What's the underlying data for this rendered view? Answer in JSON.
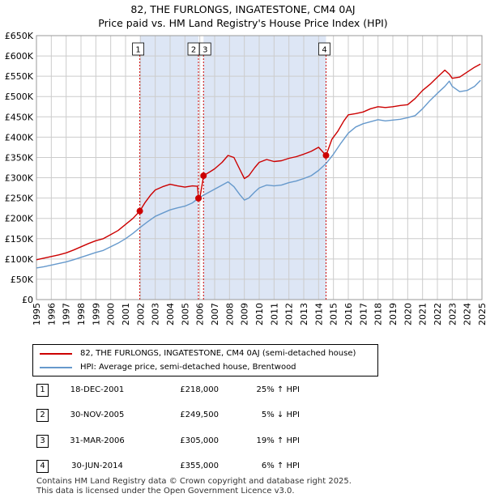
{
  "title_line1": "82, THE FURLONGS, INGATESTONE, CM4 0AJ",
  "title_line2": "Price paid vs. HM Land Registry's House Price Index (HPI)",
  "legend": {
    "property": "82, THE FURLONGS, INGATESTONE, CM4 0AJ (semi-detached house)",
    "hpi": "HPI: Average price, semi-detached house, Brentwood"
  },
  "colors": {
    "property": "#cc0000",
    "hpi": "#6699cc",
    "shade": "#dde6f5",
    "grid": "#cccccc",
    "marker": "#cc0000"
  },
  "sales": [
    {
      "num": "1",
      "date": "18-DEC-2001",
      "price": "£218,000",
      "pct": "25% ↑ HPI"
    },
    {
      "num": "2",
      "date": "30-NOV-2005",
      "price": "£249,500",
      "pct": "5% ↓ HPI"
    },
    {
      "num": "3",
      "date": "31-MAR-2006",
      "price": "£305,000",
      "pct": "19% ↑ HPI"
    },
    {
      "num": "4",
      "date": "30-JUN-2014",
      "price": "£355,000",
      "pct": "6% ↑ HPI"
    }
  ],
  "footer_line1": "Contains HM Land Registry data © Crown copyright and database right 2025.",
  "footer_line2": "This data is licensed under the Open Government Licence v3.0.",
  "chart_data": {
    "type": "line",
    "title": "82, THE FURLONGS, INGATESTONE, CM4 0AJ — Price paid vs. HM Land Registry's House Price Index (HPI)",
    "xlabel": "",
    "ylabel": "",
    "xlim": [
      1995,
      2025
    ],
    "ylim": [
      0,
      650000
    ],
    "x_ticks": [
      1995,
      1996,
      1997,
      1998,
      1999,
      2000,
      2001,
      2002,
      2003,
      2004,
      2005,
      2006,
      2007,
      2008,
      2009,
      2010,
      2011,
      2012,
      2013,
      2014,
      2015,
      2016,
      2017,
      2018,
      2019,
      2020,
      2021,
      2022,
      2023,
      2024,
      2025
    ],
    "y_ticks": [
      0,
      50000,
      100000,
      150000,
      200000,
      250000,
      300000,
      350000,
      400000,
      450000,
      500000,
      550000,
      600000,
      650000
    ],
    "y_tick_labels": [
      "£0",
      "£50K",
      "£100K",
      "£150K",
      "£200K",
      "£250K",
      "£300K",
      "£350K",
      "£400K",
      "£450K",
      "£500K",
      "£550K",
      "£600K",
      "£650K"
    ],
    "shaded_ranges": [
      [
        2001.96,
        2005.91
      ],
      [
        2006.25,
        2014.5
      ]
    ],
    "sale_points": [
      {
        "label": "1",
        "x": 2001.96,
        "y": 218000
      },
      {
        "label": "2",
        "x": 2005.91,
        "y": 249500
      },
      {
        "label": "3",
        "x": 2006.25,
        "y": 305000
      },
      {
        "label": "4",
        "x": 2014.5,
        "y": 355000
      }
    ],
    "series": [
      {
        "name": "82, THE FURLONGS, INGATESTONE, CM4 0AJ (semi-detached house)",
        "x": [
          1995,
          1995.5,
          1996,
          1996.5,
          1997,
          1997.5,
          1998,
          1998.5,
          1999,
          1999.5,
          2000,
          2000.5,
          2001,
          2001.5,
          2001.96,
          2002.3,
          2002.7,
          2003,
          2003.5,
          2004,
          2004.5,
          2005,
          2005.5,
          2005.85,
          2005.91,
          2006.0,
          2006.25,
          2006.7,
          2007,
          2007.5,
          2007.9,
          2008.3,
          2008.7,
          2009.0,
          2009.3,
          2009.7,
          2010,
          2010.5,
          2011,
          2011.5,
          2012,
          2012.5,
          2013,
          2013.5,
          2014,
          2014.5,
          2014.9,
          2015.3,
          2015.7,
          2016,
          2016.5,
          2017,
          2017.5,
          2018,
          2018.5,
          2019,
          2019.5,
          2020,
          2020.5,
          2021,
          2021.5,
          2022,
          2022.5,
          2022.8,
          2023,
          2023.5,
          2024,
          2024.5,
          2024.9
        ],
        "values": [
          98000,
          102000,
          106000,
          110000,
          115000,
          122000,
          130000,
          138000,
          145000,
          150000,
          160000,
          170000,
          185000,
          200000,
          218000,
          238000,
          258000,
          270000,
          278000,
          284000,
          280000,
          277000,
          280000,
          279000,
          249500,
          249500,
          305000,
          315000,
          322000,
          338000,
          355000,
          350000,
          320000,
          298000,
          305000,
          325000,
          338000,
          345000,
          340000,
          342000,
          348000,
          352000,
          358000,
          365000,
          375000,
          355000,
          395000,
          415000,
          440000,
          455000,
          458000,
          462000,
          470000,
          475000,
          473000,
          475000,
          478000,
          480000,
          495000,
          515000,
          530000,
          548000,
          565000,
          555000,
          545000,
          548000,
          560000,
          572000,
          580000
        ]
      },
      {
        "name": "HPI: Average price, semi-detached house, Brentwood",
        "x": [
          1995,
          1995.5,
          1996,
          1996.5,
          1997,
          1997.5,
          1998,
          1998.5,
          1999,
          1999.5,
          2000,
          2000.5,
          2001,
          2001.5,
          2002,
          2002.5,
          2003,
          2003.5,
          2004,
          2004.5,
          2005,
          2005.5,
          2006,
          2006.5,
          2007,
          2007.5,
          2007.9,
          2008.3,
          2008.7,
          2009.0,
          2009.3,
          2009.7,
          2010,
          2010.5,
          2011,
          2011.5,
          2012,
          2012.5,
          2013,
          2013.5,
          2014,
          2014.5,
          2015,
          2015.5,
          2016,
          2016.5,
          2017,
          2017.5,
          2018,
          2018.5,
          2019,
          2019.5,
          2020,
          2020.5,
          2021,
          2021.5,
          2022,
          2022.5,
          2022.8,
          2023,
          2023.5,
          2024,
          2024.5,
          2024.9
        ],
        "values": [
          78000,
          81000,
          85000,
          89000,
          93000,
          98000,
          104000,
          110000,
          116000,
          121000,
          130000,
          139000,
          150000,
          163000,
          178000,
          192000,
          205000,
          213000,
          221000,
          226000,
          230000,
          238000,
          252000,
          262000,
          272000,
          282000,
          290000,
          278000,
          258000,
          245000,
          250000,
          265000,
          275000,
          282000,
          280000,
          282000,
          288000,
          292000,
          298000,
          305000,
          318000,
          335000,
          358000,
          385000,
          410000,
          425000,
          433000,
          438000,
          443000,
          440000,
          442000,
          444000,
          448000,
          453000,
          470000,
          490000,
          508000,
          525000,
          538000,
          525000,
          512000,
          515000,
          525000,
          540000
        ]
      }
    ]
  }
}
